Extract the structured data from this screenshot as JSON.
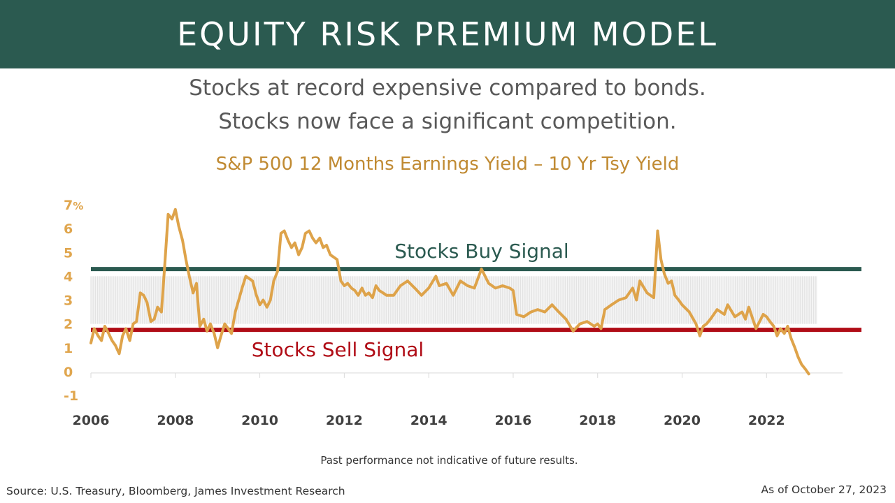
{
  "header": {
    "title": "EQUITY RISK PREMIUM MODEL"
  },
  "subtitle": {
    "line1": "Stocks at record expensive compared to bonds.",
    "line2": "Stocks now face a significant competition."
  },
  "footer": {
    "disclaimer": "Past performance  not indicative of future results.",
    "source": "Source: U.S. Treasury,  Bloomberg,  James Investment Research",
    "as_of": "As of October 27, 2023"
  },
  "colors": {
    "header_bg": "#2b5a50",
    "line": "#dea34a",
    "buy_line": "#2b5a50",
    "sell_line": "#b00c16",
    "band": "#e3e3e3",
    "axis_tick": "#e0a64e"
  },
  "chart_data": {
    "type": "line",
    "title": "S&P 500 12 Months Earnings Yield – 10 Yr Tsy Yield",
    "xlabel": "",
    "ylabel": "",
    "x_ticks": [
      "2006",
      "2008",
      "2010",
      "2012",
      "2014",
      "2016",
      "2018",
      "2020",
      "2022"
    ],
    "y_ticks": [
      "7%",
      "6",
      "5",
      "4",
      "3",
      "2",
      "1",
      "0",
      "-1"
    ],
    "ylim": [
      -1,
      7
    ],
    "xlim": [
      2006,
      2023.8
    ],
    "grid": false,
    "annotations": {
      "buy_signal": {
        "label": "Stocks Buy Signal",
        "value": 4.3
      },
      "sell_signal": {
        "label": "Stocks Sell Signal",
        "value": 1.75
      },
      "band": {
        "low": 2.0,
        "high": 4.0
      }
    },
    "series": [
      {
        "x": [
          2006.0,
          2006.08,
          2006.17,
          2006.25,
          2006.33,
          2006.42,
          2006.5,
          2006.58,
          2006.67,
          2006.75,
          2006.83,
          2006.92,
          2007.0,
          2007.08,
          2007.17,
          2007.25,
          2007.33,
          2007.42,
          2007.5,
          2007.58,
          2007.67,
          2007.75,
          2007.83,
          2007.92,
          2008.0,
          2008.08,
          2008.17,
          2008.25,
          2008.33,
          2008.42,
          2008.5,
          2008.58,
          2008.67,
          2008.75,
          2008.83,
          2008.92,
          2009.0,
          2009.08,
          2009.17,
          2009.25,
          2009.33,
          2009.42,
          2009.5,
          2009.58,
          2009.67,
          2009.75,
          2009.83,
          2009.92,
          2010.0,
          2010.08,
          2010.17,
          2010.25,
          2010.33,
          2010.42,
          2010.5,
          2010.58,
          2010.67,
          2010.75,
          2010.83,
          2010.92,
          2011.0,
          2011.08,
          2011.17,
          2011.25,
          2011.33,
          2011.42,
          2011.5,
          2011.58,
          2011.67,
          2011.75,
          2011.83,
          2011.92,
          2012.0,
          2012.08,
          2012.17,
          2012.25,
          2012.33,
          2012.42,
          2012.5,
          2012.58,
          2012.67,
          2012.75,
          2012.83,
          2012.92,
          2013.0,
          2013.17,
          2013.33,
          2013.5,
          2013.67,
          2013.83,
          2014.0,
          2014.17,
          2014.25,
          2014.42,
          2014.58,
          2014.75,
          2014.92,
          2015.08,
          2015.25,
          2015.42,
          2015.58,
          2015.75,
          2015.92,
          2016.0,
          2016.08,
          2016.25,
          2016.42,
          2016.58,
          2016.75,
          2016.92,
          2017.08,
          2017.25,
          2017.42,
          2017.58,
          2017.75,
          2017.92,
          2018.0,
          2018.08,
          2018.17,
          2018.33,
          2018.5,
          2018.67,
          2018.83,
          2018.92,
          2019.0,
          2019.17,
          2019.25,
          2019.33,
          2019.42,
          2019.5,
          2019.58,
          2019.67,
          2019.75,
          2019.83,
          2019.92,
          2020.0,
          2020.17,
          2020.33,
          2020.42,
          2020.5,
          2020.58,
          2020.67,
          2020.83,
          2021.0,
          2021.08,
          2021.25,
          2021.42,
          2021.5,
          2021.58,
          2021.75,
          2021.92,
          2022.0,
          2022.08,
          2022.17,
          2022.25,
          2022.33,
          2022.42,
          2022.5,
          2022.58,
          2022.67,
          2022.75,
          2022.83,
          2022.92,
          2023.0
        ],
        "values": [
          1.2,
          1.8,
          1.5,
          1.3,
          1.9,
          1.6,
          1.3,
          1.1,
          0.75,
          1.5,
          1.8,
          1.3,
          2.0,
          2.1,
          3.3,
          3.2,
          2.9,
          2.1,
          2.2,
          2.7,
          2.5,
          4.5,
          6.6,
          6.4,
          6.8,
          6.1,
          5.5,
          4.7,
          4.0,
          3.3,
          3.7,
          1.9,
          2.2,
          1.7,
          2.0,
          1.6,
          1.0,
          1.5,
          2.0,
          1.8,
          1.6,
          2.5,
          3.0,
          3.5,
          4.0,
          3.9,
          3.8,
          3.2,
          2.8,
          3.0,
          2.7,
          3.0,
          3.8,
          4.2,
          5.8,
          5.9,
          5.5,
          5.2,
          5.4,
          4.9,
          5.2,
          5.8,
          5.9,
          5.6,
          5.4,
          5.6,
          5.2,
          5.3,
          4.9,
          4.8,
          4.7,
          3.8,
          3.6,
          3.7,
          3.5,
          3.4,
          3.2,
          3.5,
          3.2,
          3.3,
          3.1,
          3.6,
          3.4,
          3.3,
          3.2,
          3.2,
          3.6,
          3.8,
          3.5,
          3.2,
          3.5,
          4.0,
          3.6,
          3.7,
          3.2,
          3.8,
          3.6,
          3.5,
          4.3,
          3.7,
          3.5,
          3.6,
          3.5,
          3.4,
          2.4,
          2.3,
          2.5,
          2.6,
          2.5,
          2.8,
          2.5,
          2.2,
          1.7,
          2.0,
          2.1,
          1.9,
          2.0,
          1.8,
          2.6,
          2.8,
          3.0,
          3.1,
          3.5,
          3.0,
          3.8,
          3.3,
          3.2,
          3.1,
          5.9,
          4.7,
          4.1,
          3.7,
          3.8,
          3.2,
          3.0,
          2.8,
          2.5,
          2.0,
          1.5,
          1.9,
          2.0,
          2.2,
          2.6,
          2.4,
          2.8,
          2.3,
          2.5,
          2.2,
          2.7,
          1.8,
          2.4,
          2.3,
          2.1,
          1.9,
          1.5,
          1.8,
          1.6,
          1.9,
          1.4,
          1.0,
          0.6,
          0.3,
          0.1,
          -0.1
        ]
      }
    ]
  }
}
